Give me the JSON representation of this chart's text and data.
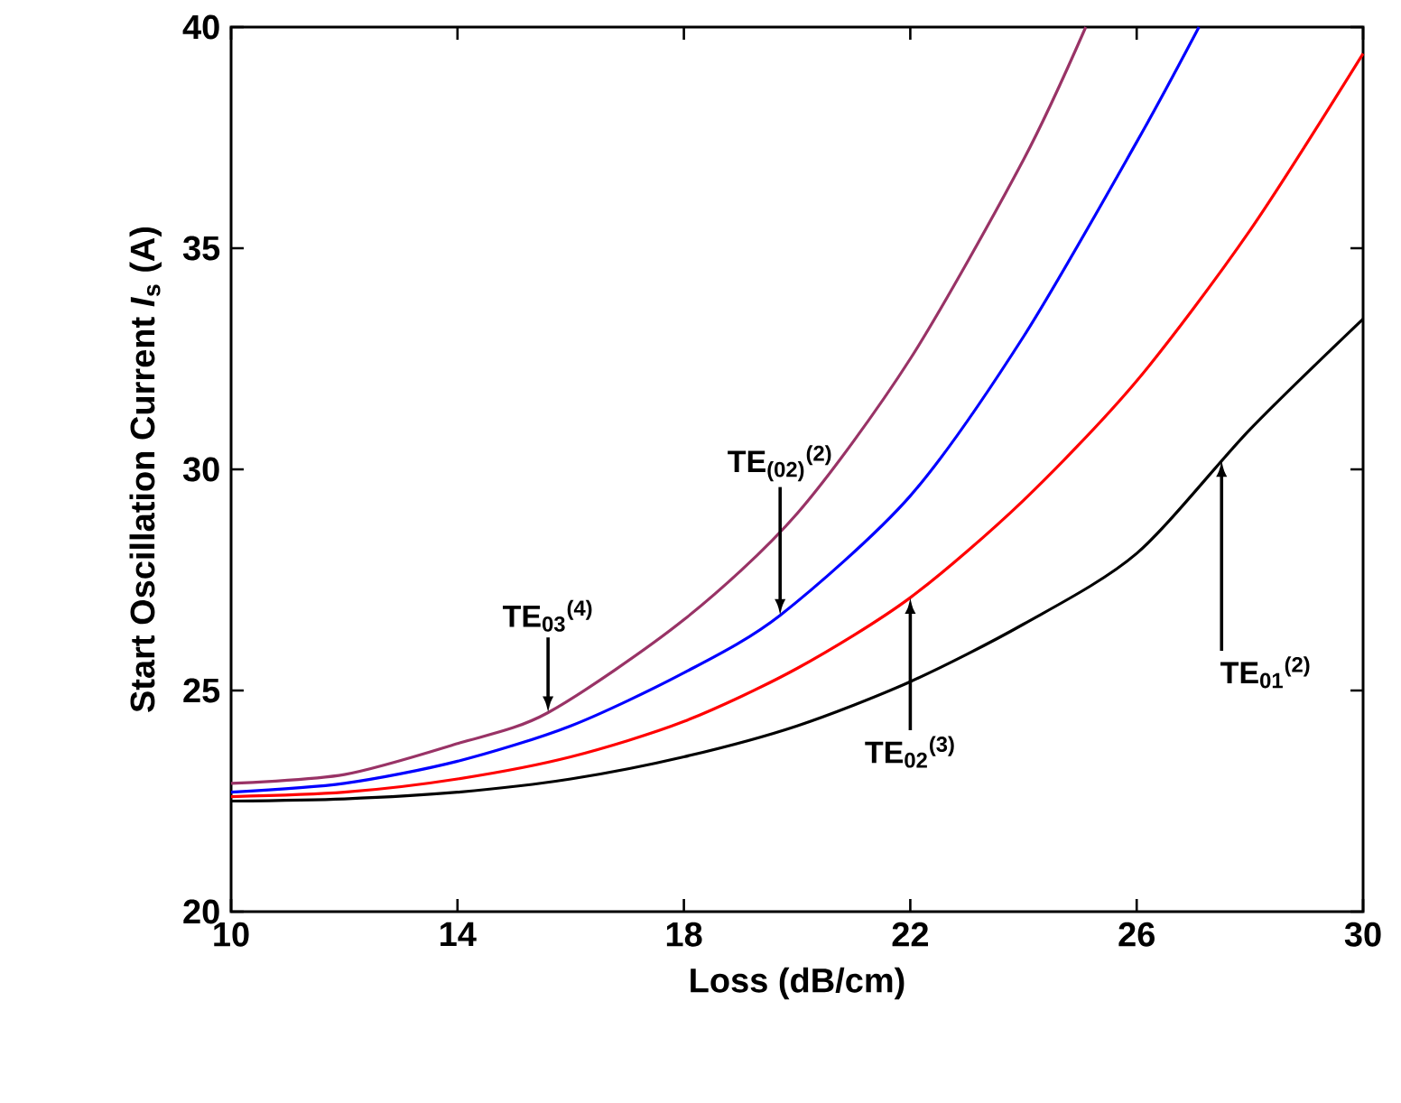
{
  "chart_data": {
    "type": "line",
    "xlabel": "Loss (dB/cm)",
    "ylabel": "Start Oscillation Current *I*$_{s}$ (A)",
    "xlim": [
      10,
      30
    ],
    "ylim": [
      20,
      40
    ],
    "xticks": [
      10,
      14,
      18,
      22,
      26,
      30
    ],
    "yticks": [
      20,
      25,
      30,
      35,
      40
    ],
    "grid": false,
    "marker": "none",
    "line_style": "solid",
    "series": [
      {
        "color": "#000000",
        "x": [
          10,
          12,
          14,
          16,
          18,
          20,
          22,
          24,
          26,
          28,
          30
        ],
        "values": [
          22.5,
          22.55,
          22.7,
          23.0,
          23.5,
          24.2,
          25.2,
          26.5,
          28.1,
          30.9,
          33.4
        ]
      },
      {
        "color": "#ff0000",
        "x": [
          10,
          12,
          14,
          16,
          18,
          20,
          22,
          24,
          26,
          28,
          30
        ],
        "values": [
          22.6,
          22.7,
          23.0,
          23.5,
          24.3,
          25.5,
          27.1,
          29.3,
          32.0,
          35.4,
          39.4
        ]
      },
      {
        "color": "#0000ff",
        "x": [
          10,
          12,
          14,
          16,
          18,
          19.7,
          22,
          24,
          26,
          27.1
        ],
        "values": [
          22.7,
          22.9,
          23.4,
          24.2,
          25.4,
          26.7,
          29.4,
          33.0,
          37.4,
          40
        ]
      },
      {
        "color": "#993366",
        "x": [
          10,
          12,
          14,
          15.6,
          18,
          20,
          22,
          24,
          25.1
        ],
        "values": [
          22.9,
          23.1,
          23.8,
          24.5,
          26.6,
          29.0,
          32.5,
          37.0,
          40
        ]
      }
    ],
    "annotations": [
      {
        "text": "TE$_{03}$$^{(4)}$",
        "x": 15.6,
        "y": 24.5
      },
      {
        "text": "TE$_{(02)}$$^{(2)}$",
        "x": 19.7,
        "y": 26.7
      },
      {
        "text": "TE$_{02}$$^{(3)}$",
        "x": 22,
        "y": 27.1
      },
      {
        "text": "TE$_{01}$$^{(2)}$",
        "x": 27.5,
        "y": 30.2
      }
    ]
  }
}
